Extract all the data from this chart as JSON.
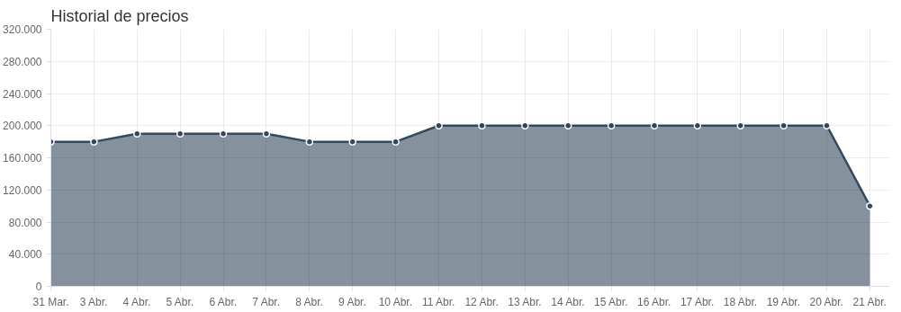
{
  "chart_data": {
    "type": "area",
    "title": "Historial de precios",
    "categories": [
      "31 Mar.",
      "3 Abr.",
      "4 Abr.",
      "5 Abr.",
      "6 Abr.",
      "7 Abr.",
      "8 Abr.",
      "9 Abr.",
      "10 Abr.",
      "11 Abr.",
      "12 Abr.",
      "13 Abr.",
      "14 Abr.",
      "15 Abr.",
      "16 Abr.",
      "17 Abr.",
      "18 Abr.",
      "19 Abr.",
      "20 Abr.",
      "21 Abr."
    ],
    "series": [
      {
        "color": "#34495e",
        "values": [
          180000,
          180000,
          190000,
          190000,
          190000,
          190000,
          180000,
          180000,
          180000,
          200000,
          200000,
          200000,
          200000,
          200000,
          200000,
          200000,
          200000,
          200000,
          200000,
          100000
        ]
      }
    ],
    "ylim": [
      0,
      320000
    ],
    "yticks": [
      {
        "value": 0,
        "label": "0"
      },
      {
        "value": 40000,
        "label": "40.000"
      },
      {
        "value": 80000,
        "label": "80.000"
      },
      {
        "value": 120000,
        "label": "120.000"
      },
      {
        "value": 160000,
        "label": "160.000"
      },
      {
        "value": 200000,
        "label": "200.000"
      },
      {
        "value": 240000,
        "label": "240.000"
      },
      {
        "value": 280000,
        "label": "280.000"
      },
      {
        "value": 320000,
        "label": "320.000"
      }
    ],
    "grid": true,
    "marker": "circle",
    "line_style": "solid"
  }
}
